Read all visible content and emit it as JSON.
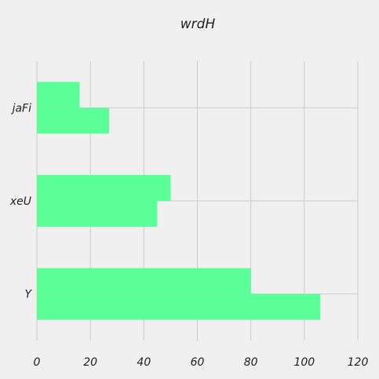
{
  "chart_data": {
    "type": "bar",
    "orientation": "horizontal",
    "title": "wrdH",
    "xlabel": "",
    "ylabel": "",
    "categories": [
      "jaFi",
      "xeU",
      "Y"
    ],
    "series": [
      {
        "values": [
          16,
          50,
          80
        ]
      },
      {
        "values": [
          27,
          45,
          106
        ]
      }
    ],
    "xlim": [
      0,
      120
    ],
    "xticks": [
      0,
      20,
      40,
      60,
      80,
      100,
      120
    ],
    "grid": true,
    "legend": "none",
    "colors": {
      "bar": "#5bff98",
      "grid": "#cbcbcb",
      "background": "#f0f0f0",
      "text": "#222222"
    }
  }
}
